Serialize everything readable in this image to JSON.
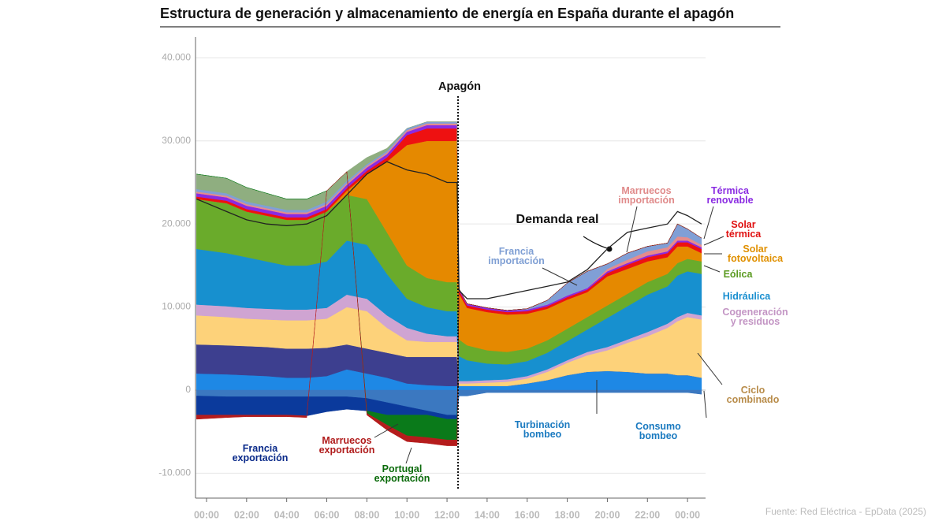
{
  "chart_data": {
    "type": "area",
    "title": "Estructura de generación y almacenamiento de energía en España durante el apagón",
    "source": "Fuente: Red Eléctrica - EpData (2025)",
    "annotations": [
      {
        "text": "Apagón",
        "x": 12.55
      }
    ],
    "xlim": [
      -0.55,
      24.9
    ],
    "ylim": [
      -13000,
      42500
    ],
    "xticks": [
      {
        "value": 0,
        "label": "00:00"
      },
      {
        "value": 2,
        "label": "02:00"
      },
      {
        "value": 4,
        "label": "04:00"
      },
      {
        "value": 6,
        "label": "06:00"
      },
      {
        "value": 8,
        "label": "08:00"
      },
      {
        "value": 10,
        "label": "10:00"
      },
      {
        "value": 12,
        "label": "12:00"
      },
      {
        "value": 14,
        "label": "14:00"
      },
      {
        "value": 16,
        "label": "16:00"
      },
      {
        "value": 18,
        "label": "18:00"
      },
      {
        "value": 20,
        "label": "20:00"
      },
      {
        "value": 22,
        "label": "22:00"
      },
      {
        "value": 24,
        "label": "00:00"
      }
    ],
    "yticks": [
      {
        "value": -10000,
        "label": "-10.000"
      },
      0,
      {
        "value": 10000,
        "label": "10.000"
      },
      {
        "value": 20000,
        "label": "20.000"
      },
      {
        "value": 30000,
        "label": "30.000"
      },
      {
        "value": 40000,
        "label": "40.000"
      }
    ],
    "grid": true,
    "x": [
      -0.5,
      1,
      2,
      3,
      4,
      5,
      6,
      7,
      8,
      9,
      10,
      11,
      12,
      12.5,
      12.6,
      13,
      14,
      15,
      16,
      17,
      18,
      19,
      20,
      21,
      22,
      23,
      23.5,
      24,
      24.7
    ],
    "series": [
      {
        "name": "Turbinación bombeo",
        "color": "#1e88e5",
        "values": [
          2000,
          1900,
          1800,
          1700,
          1500,
          1500,
          1700,
          2500,
          2000,
          1500,
          800,
          600,
          500,
          500,
          500,
          500,
          500,
          500,
          800,
          1200,
          1800,
          2200,
          2300,
          2200,
          2000,
          2000,
          1800,
          1800,
          1500
        ]
      },
      {
        "color": "#3d3f8f",
        "values": [
          3500,
          3500,
          3500,
          3500,
          3500,
          3500,
          3400,
          3000,
          3000,
          3000,
          3200,
          3400,
          3500,
          3500,
          0,
          0,
          0,
          0,
          0,
          0,
          0,
          0,
          0,
          0,
          0,
          0,
          0,
          0,
          0
        ]
      },
      {
        "name": "Ciclo combinado",
        "color": "#fdd27a",
        "values": [
          3500,
          3400,
          3300,
          3300,
          3400,
          3400,
          3500,
          4500,
          4500,
          3000,
          2000,
          1800,
          1800,
          1800,
          300,
          300,
          400,
          500,
          600,
          1000,
          1500,
          2000,
          2500,
          3500,
          4500,
          5500,
          6500,
          7000,
          7000
        ]
      },
      {
        "name": "Cogeneración y residuos",
        "color": "#cfa4d2",
        "values": [
          1300,
          1300,
          1300,
          1300,
          1300,
          1300,
          1300,
          1500,
          1500,
          1500,
          1500,
          1000,
          700,
          700,
          300,
          300,
          300,
          300,
          300,
          300,
          300,
          400,
          400,
          400,
          500,
          500,
          500,
          500,
          500
        ]
      },
      {
        "name": "Hidráulica",
        "color": "#1790cf",
        "values": [
          6700,
          6400,
          6100,
          5700,
          5300,
          5300,
          5600,
          6500,
          6500,
          5000,
          3500,
          3200,
          3000,
          3000,
          3000,
          2500,
          2000,
          1800,
          1800,
          2000,
          2300,
          2700,
          3500,
          4000,
          4500,
          4500,
          5000,
          5000,
          5000
        ]
      },
      {
        "name": "Eólica",
        "color": "#6aab2b",
        "values": [
          6000,
          6000,
          5500,
          5500,
          5500,
          5500,
          6000,
          5500,
          5500,
          5000,
          4000,
          3500,
          3500,
          3500,
          2000,
          1800,
          1600,
          1500,
          1500,
          1500,
          1500,
          1500,
          1500,
          1500,
          1500,
          1500,
          1500,
          1500,
          1500
        ]
      },
      {
        "name": "Solar fotovoltaica",
        "color": "#e58900",
        "values": [
          0,
          0,
          0,
          0,
          0,
          0,
          0,
          500,
          3000,
          8500,
          14500,
          16500,
          17000,
          17000,
          5500,
          4500,
          4600,
          4500,
          4200,
          3800,
          3500,
          3000,
          3500,
          3000,
          2500,
          2000,
          2000,
          1500,
          1000
        ]
      },
      {
        "name": "Solar térmica",
        "color": "#ee1111",
        "values": [
          300,
          300,
          300,
          300,
          300,
          300,
          300,
          300,
          400,
          500,
          1200,
          1500,
          1500,
          1500,
          400,
          300,
          300,
          300,
          300,
          300,
          300,
          300,
          400,
          500,
          500,
          500,
          500,
          500,
          500
        ]
      },
      {
        "name": "Térmica renovable",
        "color": "#8a2be2",
        "values": [
          400,
          400,
          400,
          400,
          400,
          400,
          400,
          400,
          400,
          400,
          400,
          400,
          400,
          400,
          200,
          200,
          200,
          200,
          200,
          200,
          200,
          200,
          200,
          200,
          200,
          200,
          200,
          200,
          200
        ]
      },
      {
        "name": "Marruecos importación",
        "color": "#e58c8c",
        "values": [
          200,
          200,
          200,
          200,
          200,
          200,
          200,
          200,
          200,
          200,
          200,
          200,
          200,
          200,
          0,
          0,
          0,
          0,
          0,
          0,
          0,
          0,
          300,
          400,
          500,
          500,
          500,
          400,
          300
        ]
      },
      {
        "name": "Francia importación",
        "color": "#809fd6",
        "values": [
          300,
          300,
          300,
          300,
          300,
          300,
          300,
          300,
          200,
          200,
          200,
          200,
          200,
          200,
          0,
          0,
          0,
          0,
          100,
          500,
          1500,
          2000,
          600,
          800,
          600,
          500,
          1500,
          1000,
          800
        ]
      },
      {
        "color": "#8fae80",
        "values": [
          1800,
          1800,
          1700,
          1500,
          1300,
          1300,
          1300,
          1100,
          800,
          300,
          0,
          0,
          0,
          0,
          0,
          0,
          0,
          0,
          0,
          0,
          0,
          0,
          0,
          0,
          0,
          0,
          0,
          0,
          0
        ]
      },
      {
        "name": "Consumo bombeo",
        "color": "#3b78c0",
        "values": [
          -700,
          -800,
          -800,
          -800,
          -800,
          -800,
          -800,
          -800,
          -1000,
          -1500,
          -2000,
          -2500,
          -3000,
          -3000,
          -700,
          -700,
          -300,
          -300,
          -300,
          -300,
          -300,
          -300,
          -300,
          -300,
          -300,
          -300,
          -300,
          -300,
          -500
        ]
      },
      {
        "name": "Francia exportación",
        "color": "#0b3a9c",
        "values": [
          -2300,
          -2200,
          -2200,
          -2200,
          -2200,
          -2300,
          -1800,
          -1500,
          -1500,
          -1500,
          -1000,
          -500,
          -500,
          -500,
          0,
          0,
          0,
          0,
          0,
          0,
          0,
          0,
          0,
          0,
          0,
          0,
          0,
          0,
          0
        ]
      },
      {
        "name": "Portugal exportación",
        "color": "#0a7a1a",
        "values": [
          0,
          0,
          0,
          0,
          0,
          0,
          0,
          0,
          -300,
          -1200,
          -2500,
          -2700,
          -2500,
          -2500,
          0,
          0,
          0,
          0,
          0,
          0,
          0,
          0,
          0,
          0,
          0,
          0,
          0,
          0,
          0
        ]
      },
      {
        "name": "Marruecos exportación",
        "color": "#b51c1c",
        "values": [
          -500,
          -300,
          -200,
          -200,
          -200,
          -200,
          0,
          0,
          -200,
          -600,
          -700,
          -700,
          -700,
          -700,
          0,
          0,
          0,
          0,
          0,
          0,
          0,
          0,
          0,
          0,
          0,
          0,
          0,
          0,
          0
        ]
      },
      {
        "name": "Demanda real",
        "type": "line",
        "color": "#222222",
        "values": [
          23000,
          21500,
          20500,
          20000,
          19800,
          20000,
          21000,
          23500,
          26000,
          27500,
          26500,
          26000,
          25000,
          25000,
          12000,
          11000,
          11000,
          11500,
          12000,
          12500,
          13000,
          14500,
          17000,
          19000,
          19500,
          20000,
          21500,
          21000,
          20000
        ]
      }
    ]
  }
}
